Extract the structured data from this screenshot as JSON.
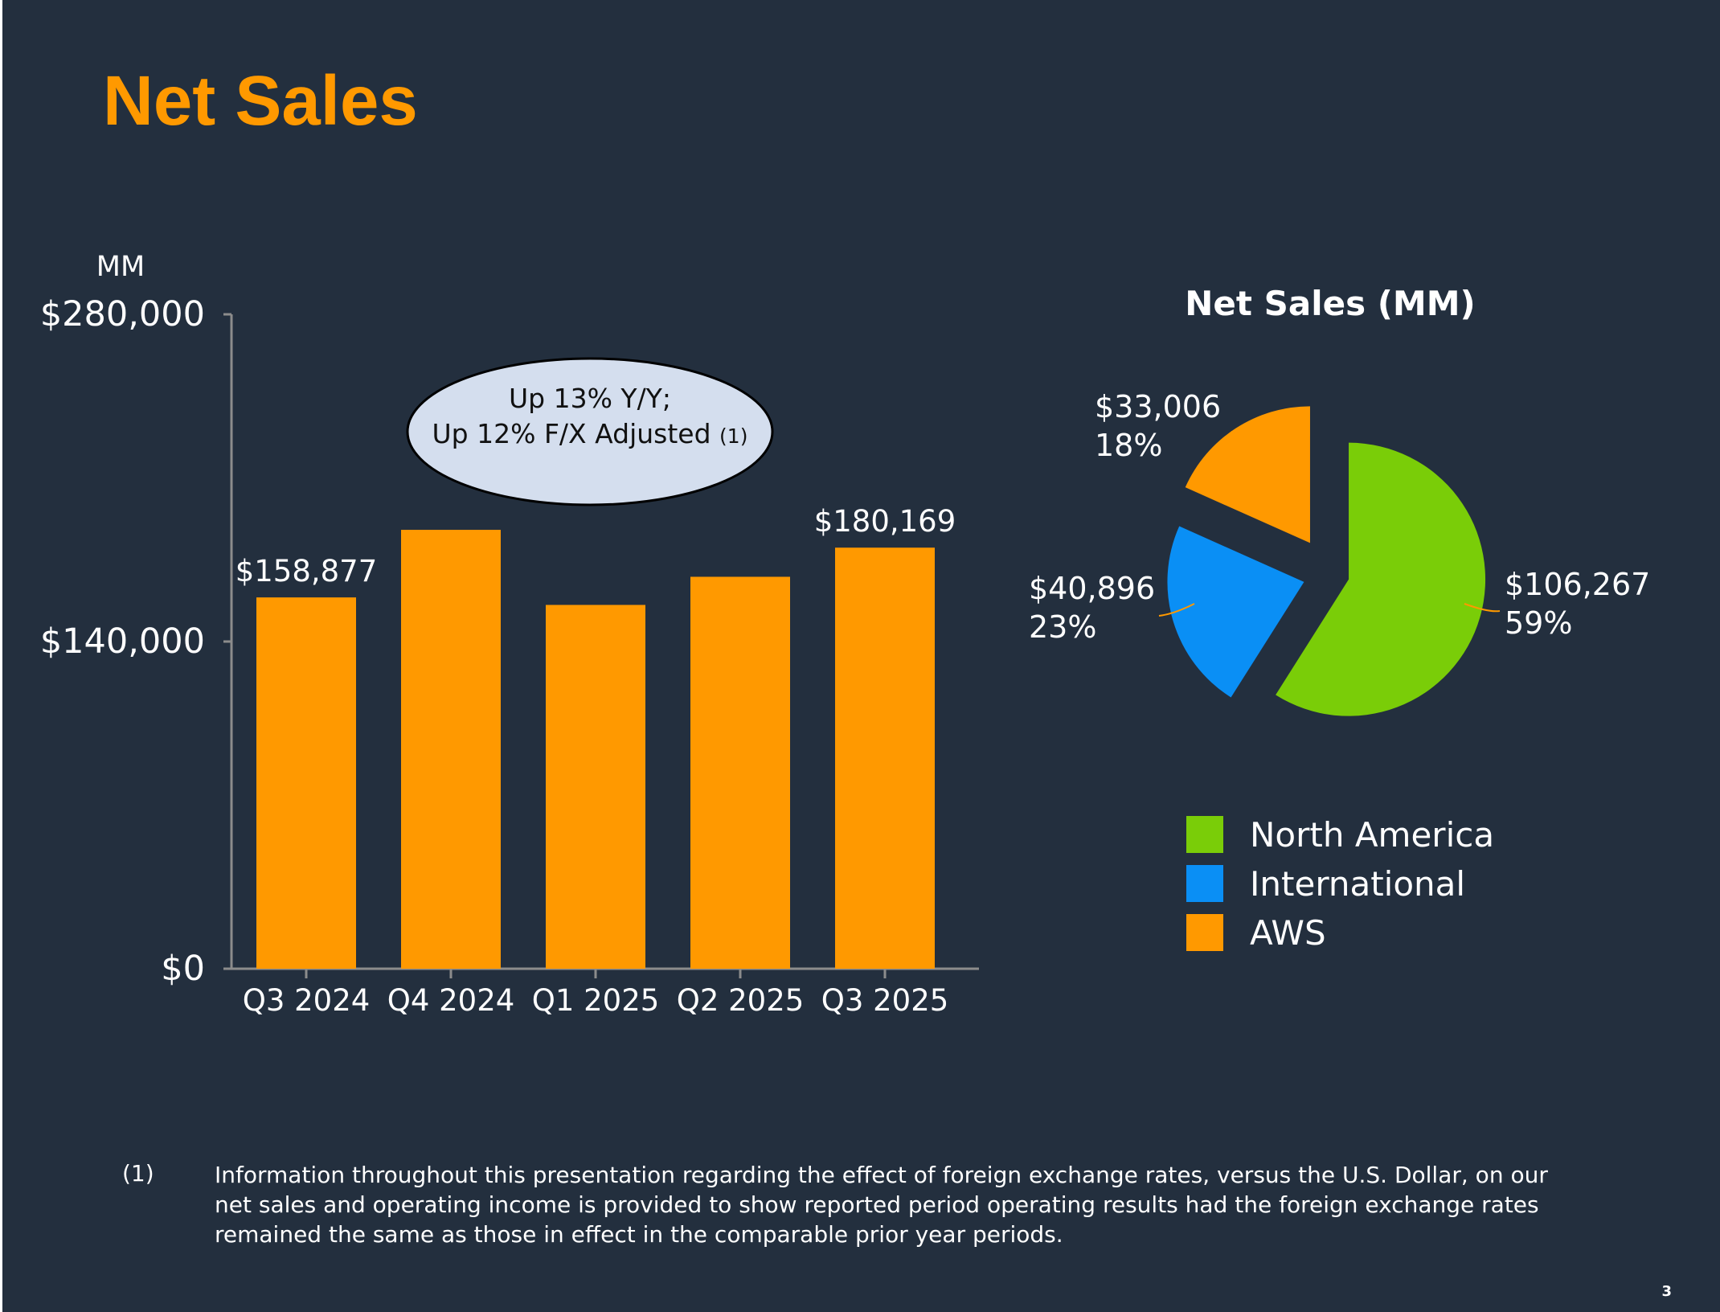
{
  "page": {
    "title": "Net Sales",
    "footnote_marker": "(1)",
    "footnote_text": "Information throughout this presentation regarding the effect of foreign exchange rates, versus the U.S. Dollar, on our net sales and operating income is provided to show reported period operating results had the foreign exchange rates remained the same as those in effect in the comparable prior year periods.",
    "page_number": "3"
  },
  "colors": {
    "background": "#232f3e",
    "bar": "#ff9900",
    "axis": "#8c8c8c",
    "callout_fill": "#d4deee",
    "callout_text": "#111111",
    "leader": "#ff9900"
  },
  "chart_data": [
    {
      "type": "bar",
      "unit_label": "MM",
      "categories": [
        "Q3 2024",
        "Q4 2024",
        "Q1 2025",
        "Q2 2025",
        "Q3 2025"
      ],
      "values": [
        158877,
        187792,
        155667,
        167702,
        180169
      ],
      "data_labels": [
        "$158,877",
        "",
        "",
        "",
        "$180,169"
      ],
      "yticks": [
        0,
        140000,
        280000
      ],
      "ytick_labels": [
        "$0",
        "$140,000",
        "$280,000"
      ],
      "ylim": [
        0,
        280000
      ],
      "grid": false,
      "callout": {
        "line1": "Up 13% Y/Y;",
        "line2": "Up 12% F/X Adjusted",
        "note_ref": "(1)"
      }
    },
    {
      "type": "pie",
      "title": "Net Sales (MM)",
      "slices": [
        {
          "name": "North America",
          "value": 106267,
          "value_label": "$106,267",
          "pct_label": "59%",
          "color": "#7acd08"
        },
        {
          "name": "International",
          "value": 40896,
          "value_label": "$40,896",
          "pct_label": "23%",
          "color": "#0a8ff5"
        },
        {
          "name": "AWS",
          "value": 33006,
          "value_label": "$33,006",
          "pct_label": "18%",
          "color": "#ff9900"
        }
      ],
      "legend": {
        "placement": "bottom",
        "items": [
          "North America",
          "International",
          "AWS"
        ]
      }
    }
  ]
}
